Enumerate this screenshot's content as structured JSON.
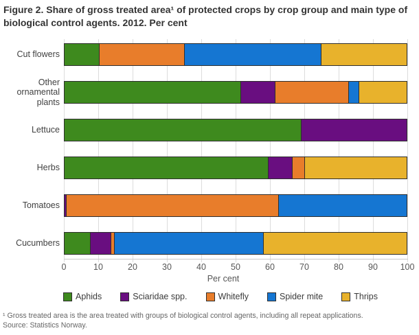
{
  "title": "Figure 2. Share of gross treated area¹ of protected crops by crop group and main type of biological control agents. 2012. Per cent",
  "footnote_line1": "¹ Gross treated area is the area treated with groups of biological control agents, including all repeat applications.",
  "footnote_line2": "Source: Statistics Norway.",
  "colors": {
    "aphids": "#3E8A1E",
    "sciaridae": "#690E80",
    "whitefly": "#E87D2B",
    "spider_mite": "#1576D2",
    "thrips": "#E8B22C",
    "bar_border": "#2e2e2e",
    "gridline": "#dcdcdc"
  },
  "chart_data": {
    "type": "bar",
    "orientation": "horizontal-stacked",
    "categories": [
      "Cut flowers",
      "Other ornamental plants",
      "Lettuce",
      "Herbs",
      "Tomatoes",
      "Cucumbers"
    ],
    "series": [
      {
        "name": "Aphids",
        "color": "#3E8A1E",
        "values": [
          10,
          51.5,
          69,
          59.5,
          0,
          7.5
        ]
      },
      {
        "name": "Sciaridae spp.",
        "color": "#690E80",
        "values": [
          0,
          10,
          31,
          7,
          0.5,
          6
        ]
      },
      {
        "name": "Whitefly",
        "color": "#E87D2B",
        "values": [
          25,
          21.5,
          0,
          3.5,
          62,
          1
        ]
      },
      {
        "name": "Spider mite",
        "color": "#1576D2",
        "values": [
          40,
          3,
          0,
          0,
          37.5,
          43.5
        ]
      },
      {
        "name": "Thrips",
        "color": "#E8B22C",
        "values": [
          25,
          14,
          0,
          30,
          0,
          42
        ]
      }
    ],
    "xlabel": "Per cent",
    "xlim": [
      0,
      100
    ],
    "xticks": [
      0,
      10,
      20,
      30,
      40,
      50,
      60,
      70,
      80,
      90,
      100
    ],
    "grid": true,
    "legend_position": "bottom"
  }
}
